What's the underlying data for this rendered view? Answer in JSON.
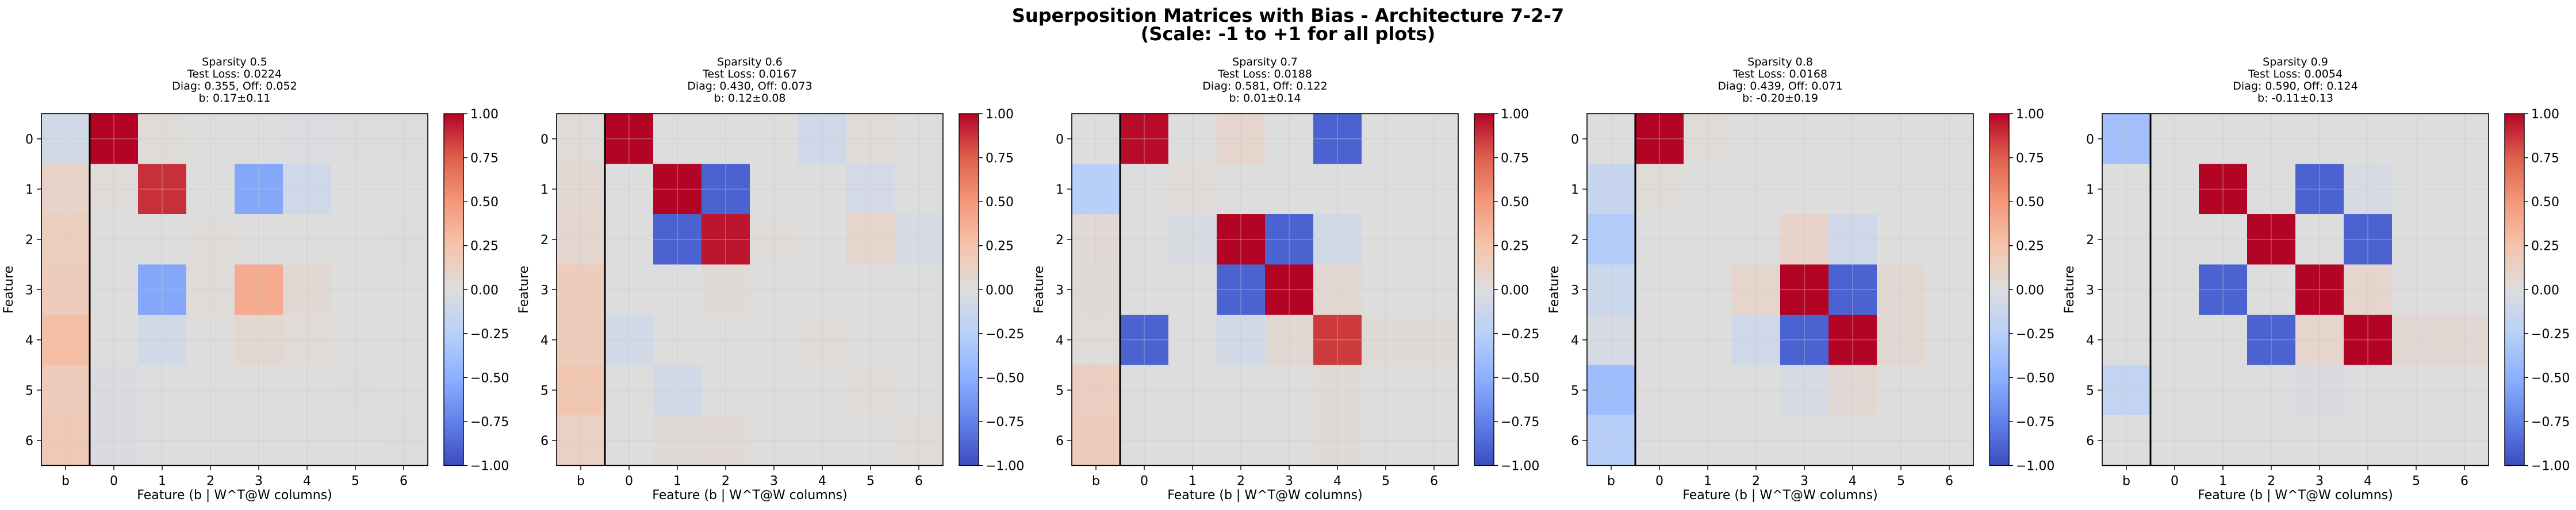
{
  "figure": {
    "title_line1": "Superposition Matrices with Bias - Architecture 7-2-7",
    "title_line2": "(Scale: -1 to +1 for all plots)"
  },
  "chart_data": [
    {
      "type": "heatmap",
      "title_lines": [
        "Sparsity 0.5",
        "Test Loss: 0.0224",
        "Diag: 0.355, Off: 0.052",
        "b: 0.17±0.11"
      ],
      "xlabel": "Feature (b | W^T@W columns)",
      "ylabel": "Feature",
      "x_ticks": [
        "b",
        "0",
        "1",
        "2",
        "3",
        "4",
        "5",
        "6"
      ],
      "y_ticks": [
        "0",
        "1",
        "2",
        "3",
        "4",
        "5",
        "6"
      ],
      "vmin": -1,
      "vmax": 1,
      "colormap": "coolwarm",
      "colorbar_ticks": [
        "1.00",
        "0.75",
        "0.50",
        "0.25",
        "0.00",
        "−0.25",
        "−0.50",
        "−0.75",
        "−1.00"
      ],
      "matrix": [
        [
          -0.08,
          1.0,
          0.02,
          0.0,
          0.0,
          -0.02,
          -0.01,
          -0.01
        ],
        [
          0.1,
          0.02,
          0.88,
          0.0,
          -0.55,
          -0.1,
          0.0,
          0.0
        ],
        [
          0.15,
          0.0,
          0.0,
          0.02,
          0.0,
          0.0,
          0.0,
          0.01
        ],
        [
          0.17,
          0.0,
          -0.55,
          0.02,
          0.4,
          0.05,
          0.0,
          0.0
        ],
        [
          0.28,
          0.0,
          -0.08,
          0.0,
          0.06,
          0.02,
          0.0,
          0.0
        ],
        [
          0.18,
          -0.03,
          0.0,
          0.0,
          0.0,
          0.0,
          0.01,
          0.0
        ],
        [
          0.2,
          -0.03,
          0.0,
          0.0,
          0.0,
          0.0,
          0.0,
          0.01
        ]
      ]
    },
    {
      "type": "heatmap",
      "title_lines": [
        "Sparsity 0.6",
        "Test Loss: 0.0167",
        "Diag: 0.430, Off: 0.073",
        "b: 0.12±0.08"
      ],
      "xlabel": "Feature (b | W^T@W columns)",
      "ylabel": "Feature",
      "x_ticks": [
        "b",
        "0",
        "1",
        "2",
        "3",
        "4",
        "5",
        "6"
      ],
      "y_ticks": [
        "0",
        "1",
        "2",
        "3",
        "4",
        "5",
        "6"
      ],
      "vmin": -1,
      "vmax": 1,
      "colormap": "coolwarm",
      "colorbar_ticks": [
        "1.00",
        "0.75",
        "0.50",
        "0.25",
        "0.00",
        "−0.25",
        "−0.50",
        "−0.75",
        "−1.00"
      ],
      "matrix": [
        [
          0.02,
          1.0,
          0.0,
          0.0,
          0.0,
          -0.1,
          0.02,
          0.0
        ],
        [
          0.06,
          0.0,
          1.0,
          -0.9,
          0.0,
          0.0,
          -0.07,
          0.0
        ],
        [
          0.07,
          0.0,
          -0.9,
          0.95,
          0.02,
          0.0,
          0.08,
          -0.05
        ],
        [
          0.17,
          0.0,
          0.0,
          0.03,
          0.0,
          0.0,
          0.0,
          0.0
        ],
        [
          0.18,
          -0.08,
          0.0,
          0.0,
          0.0,
          0.02,
          0.0,
          0.0
        ],
        [
          0.22,
          0.0,
          -0.08,
          0.0,
          0.0,
          0.0,
          0.02,
          0.0
        ],
        [
          0.12,
          0.0,
          0.03,
          0.04,
          0.0,
          0.0,
          0.0,
          0.02
        ]
      ]
    },
    {
      "type": "heatmap",
      "title_lines": [
        "Sparsity 0.7",
        "Test Loss: 0.0188",
        "Diag: 0.581, Off: 0.122",
        "b: 0.01±0.14"
      ],
      "xlabel": "Feature (b | W^T@W columns)",
      "ylabel": "Feature",
      "x_ticks": [
        "b",
        "0",
        "1",
        "2",
        "3",
        "4",
        "5",
        "6"
      ],
      "y_ticks": [
        "0",
        "1",
        "2",
        "3",
        "4",
        "5",
        "6"
      ],
      "vmin": -1,
      "vmax": 1,
      "colormap": "coolwarm",
      "colorbar_ticks": [
        "1.00",
        "0.75",
        "0.50",
        "0.25",
        "0.00",
        "−0.25",
        "−0.50",
        "−0.75",
        "−1.00"
      ],
      "matrix": [
        [
          0.0,
          0.98,
          0.0,
          0.08,
          0.0,
          -0.9,
          0.0,
          0.0
        ],
        [
          -0.25,
          0.0,
          0.02,
          0.0,
          0.0,
          0.0,
          0.0,
          0.0
        ],
        [
          0.04,
          0.0,
          -0.04,
          1.0,
          -0.9,
          -0.08,
          0.0,
          0.0
        ],
        [
          0.03,
          0.0,
          0.0,
          -0.9,
          1.0,
          0.05,
          0.0,
          0.0
        ],
        [
          0.02,
          -0.9,
          0.0,
          -0.08,
          0.05,
          0.85,
          0.03,
          0.03
        ],
        [
          0.15,
          0.0,
          0.0,
          0.0,
          0.0,
          0.03,
          0.0,
          0.0
        ],
        [
          0.18,
          0.0,
          0.0,
          0.0,
          0.0,
          0.03,
          0.0,
          0.0
        ]
      ]
    },
    {
      "type": "heatmap",
      "title_lines": [
        "Sparsity 0.8",
        "Test Loss: 0.0168",
        "Diag: 0.439, Off: 0.071",
        "b: -0.20±0.19"
      ],
      "xlabel": "Feature (b | W^T@W columns)",
      "ylabel": "Feature",
      "x_ticks": [
        "b",
        "0",
        "1",
        "2",
        "3",
        "4",
        "5",
        "6"
      ],
      "y_ticks": [
        "0",
        "1",
        "2",
        "3",
        "4",
        "5",
        "6"
      ],
      "vmin": -1,
      "vmax": 1,
      "colormap": "coolwarm",
      "colorbar_ticks": [
        "1.00",
        "0.75",
        "0.50",
        "0.25",
        "0.00",
        "−0.25",
        "−0.50",
        "−0.75",
        "−1.00"
      ],
      "matrix": [
        [
          0.0,
          1.0,
          0.02,
          0.0,
          0.0,
          0.0,
          0.0,
          0.0
        ],
        [
          -0.15,
          0.02,
          0.0,
          0.0,
          0.0,
          0.0,
          0.0,
          0.0
        ],
        [
          -0.28,
          0.0,
          0.0,
          0.0,
          0.1,
          -0.1,
          0.0,
          0.0
        ],
        [
          -0.12,
          0.0,
          0.0,
          0.08,
          1.0,
          -0.9,
          0.05,
          0.0
        ],
        [
          -0.05,
          0.0,
          0.0,
          -0.1,
          -0.9,
          1.0,
          0.05,
          0.0
        ],
        [
          -0.4,
          0.0,
          0.0,
          0.0,
          -0.05,
          0.05,
          0.0,
          0.0
        ],
        [
          -0.25,
          0.0,
          0.0,
          0.0,
          0.0,
          0.0,
          0.0,
          0.0
        ]
      ]
    },
    {
      "type": "heatmap",
      "title_lines": [
        "Sparsity 0.9",
        "Test Loss: 0.0054",
        "Diag: 0.590, Off: 0.124",
        "b: -0.11±0.13"
      ],
      "xlabel": "Feature (b | W^T@W columns)",
      "ylabel": "Feature",
      "x_ticks": [
        "b",
        "0",
        "1",
        "2",
        "3",
        "4",
        "5",
        "6"
      ],
      "y_ticks": [
        "0",
        "1",
        "2",
        "3",
        "4",
        "5",
        "6"
      ],
      "vmin": -1,
      "vmax": 1,
      "colormap": "coolwarm",
      "colorbar_ticks": [
        "1.00",
        "0.75",
        "0.50",
        "0.25",
        "0.00",
        "−0.25",
        "−0.50",
        "−0.75",
        "−1.00"
      ],
      "matrix": [
        [
          -0.38,
          0.0,
          0.0,
          0.0,
          0.0,
          0.0,
          0.0,
          0.0
        ],
        [
          0.0,
          0.0,
          1.0,
          0.0,
          -0.9,
          -0.05,
          0.0,
          0.0
        ],
        [
          0.0,
          0.0,
          0.0,
          1.0,
          0.0,
          -0.9,
          0.0,
          0.0
        ],
        [
          0.0,
          0.0,
          -0.9,
          0.0,
          1.0,
          0.08,
          0.0,
          0.0
        ],
        [
          0.0,
          0.0,
          0.0,
          -0.9,
          0.08,
          1.0,
          0.05,
          0.05
        ],
        [
          -0.18,
          0.0,
          0.0,
          0.0,
          -0.03,
          0.0,
          0.0,
          0.0
        ],
        [
          0.0,
          0.0,
          0.0,
          0.0,
          0.0,
          0.0,
          0.0,
          0.0
        ]
      ]
    }
  ]
}
